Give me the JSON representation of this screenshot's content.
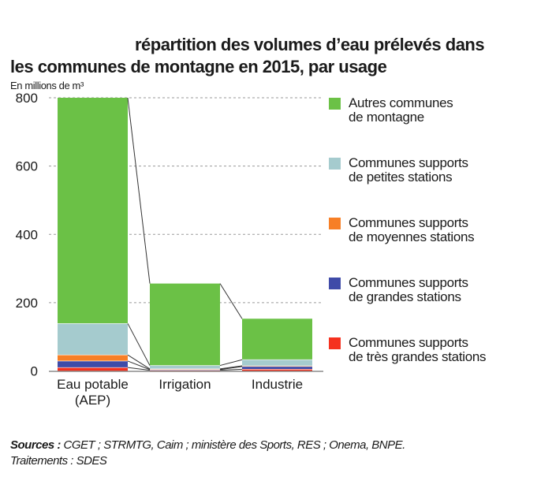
{
  "chart_data": {
    "type": "bar",
    "stacked": true,
    "title": "répartition des volumes d’eau prélevés dans les communes de montagne en 2015, par usage",
    "title_lines": [
      "répartition des volumes d’eau prélevés dans",
      "les communes de montagne en 2015, par usage"
    ],
    "ylabel": "En millions de m³",
    "xlabel": "",
    "ylim": [
      0,
      800
    ],
    "yticks": [
      0,
      200,
      400,
      600,
      800
    ],
    "grid": true,
    "legend_position": "right",
    "categories": [
      {
        "lines": [
          "Eau potable",
          "(AEP)"
        ]
      },
      {
        "lines": [
          "Irrigation"
        ]
      },
      {
        "lines": [
          "Industrie"
        ]
      }
    ],
    "series": [
      {
        "name": "Communes supports de très grandes stations",
        "lines": [
          "Communes supports",
          "de très grandes stations"
        ],
        "color": "#f5311f",
        "values": [
          10,
          2,
          5
        ]
      },
      {
        "name": "Communes supports de grandes stations",
        "lines": [
          "Communes supports",
          "de grandes stations"
        ],
        "color": "#3f4ba8",
        "values": [
          19,
          2,
          8
        ]
      },
      {
        "name": "Communes supports de moyennes stations",
        "lines": [
          "Communes supports",
          "de moyennes stations"
        ],
        "color": "#f77f26",
        "values": [
          18,
          2,
          2
        ]
      },
      {
        "name": "Communes supports de petites stations",
        "lines": [
          "Communes supports",
          "de petites stations"
        ],
        "color": "#a5cbce",
        "values": [
          92,
          10,
          18
        ]
      },
      {
        "name": "Autres communes de montagne",
        "lines": [
          "Autres communes",
          "de montagne"
        ],
        "color": "#6bc146",
        "values": [
          661,
          240,
          120
        ]
      }
    ],
    "legend_order": [
      4,
      3,
      2,
      1,
      0
    ]
  },
  "unit_label": "En millions de m³",
  "sources": {
    "label": "Sources :",
    "text": " CGET ; STRMTG, Caim ; ministère des Sports, RES ; Onema, BNPE.",
    "line2": "Traitements : SDES"
  }
}
